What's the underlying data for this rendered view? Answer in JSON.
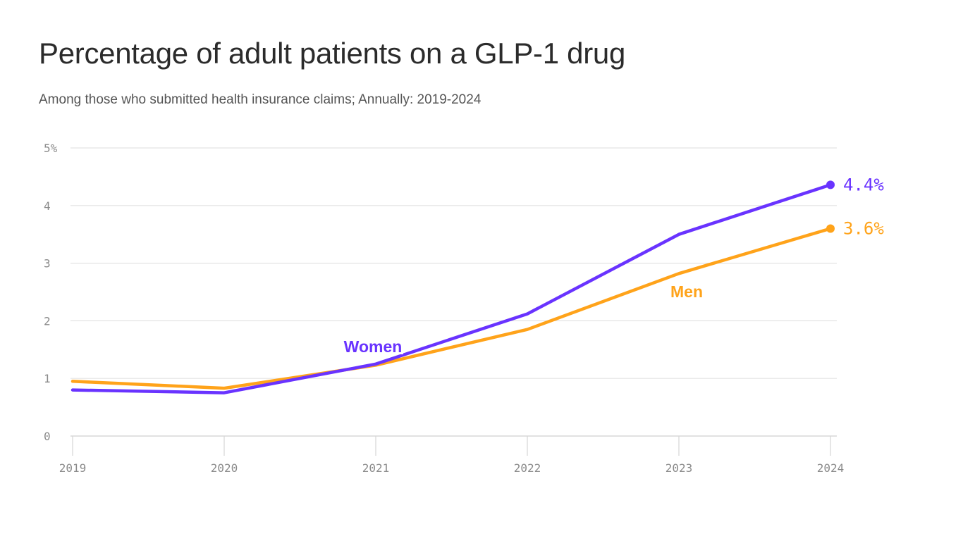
{
  "chart_data": {
    "type": "line",
    "title": "Percentage of adult patients on a GLP-1 drug",
    "subtitle": "Among those who submitted health insurance claims; Annually: 2019-2024",
    "x": [
      "2019",
      "2020",
      "2021",
      "2022",
      "2023",
      "2024"
    ],
    "ylim": [
      0,
      5
    ],
    "yticks": [
      "0",
      "1",
      "2",
      "3",
      "4",
      "5%"
    ],
    "grid": true,
    "series": [
      {
        "name": "Women",
        "color": "#6933ff",
        "values": [
          0.8,
          0.75,
          1.25,
          2.12,
          3.5,
          4.36
        ],
        "end_label": "4.4%"
      },
      {
        "name": "Men",
        "color": "#ffa31a",
        "values": [
          0.95,
          0.83,
          1.23,
          1.85,
          2.82,
          3.6
        ],
        "end_label": "3.6%"
      }
    ]
  }
}
